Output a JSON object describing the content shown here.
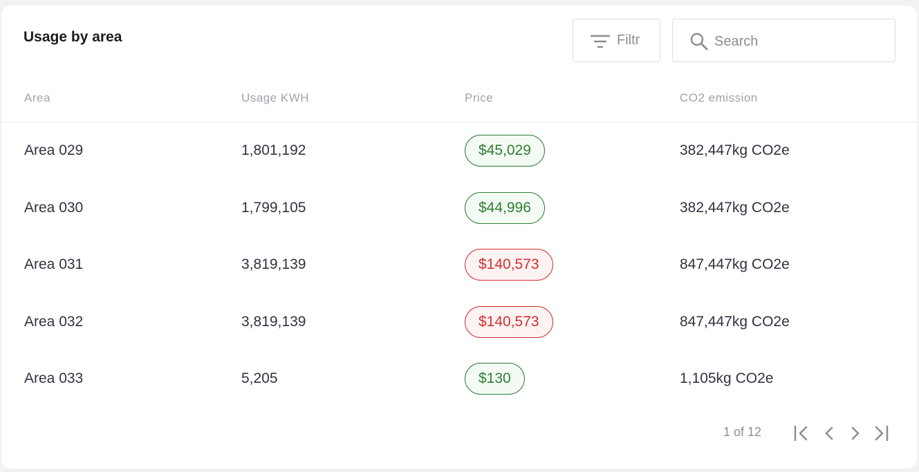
{
  "header": {
    "title": "Usage by area"
  },
  "filter_button": {
    "label": "Filtr"
  },
  "search": {
    "placeholder": "Search"
  },
  "table": {
    "columns": [
      "Area",
      "Usage KWH",
      "Price",
      "CO2 emission"
    ],
    "rows": [
      [
        "Area 029",
        "1,801,192",
        "$45,029",
        "382,447kg CO2e"
      ],
      [
        "Area 030",
        "1,799,105",
        "$44,996",
        "382,447kg CO2e"
      ],
      [
        "Area 031",
        "3,819,139",
        "$140,573",
        "847,447kg CO2e"
      ],
      [
        "Area 032",
        "3,819,139",
        "$140,573",
        "847,447kg CO2e"
      ],
      [
        "Area 033",
        "5,205",
        "$130",
        "1,105kg CO2e"
      ]
    ],
    "price_colors": [
      "#2e7d32",
      "#2e7d32",
      "#d32f2f",
      "#d32f2f",
      "#2e7d32"
    ]
  },
  "pagination": {
    "label": "1 of 12"
  }
}
